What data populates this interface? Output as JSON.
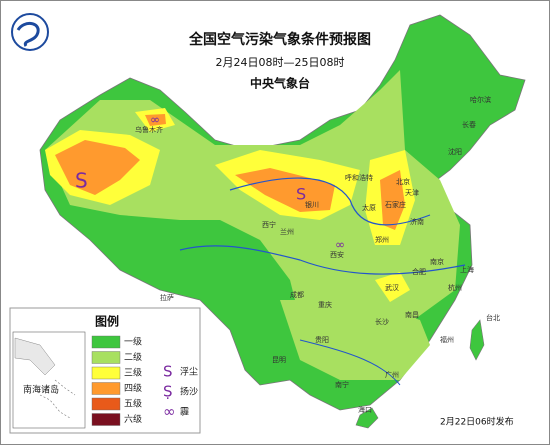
{
  "header": {
    "title": "全国空气污染气象条件预报图",
    "period": "2月24日08时—25日08时",
    "issuer": "中央气象台"
  },
  "legend": {
    "title": "图例",
    "levels": [
      {
        "name": "一级",
        "color": "#3ec63e"
      },
      {
        "name": "二级",
        "color": "#a8e060"
      },
      {
        "name": "三级",
        "color": "#ffff3a"
      },
      {
        "name": "四级",
        "color": "#ff9a2e"
      },
      {
        "name": "五级",
        "color": "#e85a1a"
      },
      {
        "name": "六级",
        "color": "#7a1020"
      }
    ],
    "symbols": [
      {
        "name": "浮尘"
      },
      {
        "name": "扬沙"
      },
      {
        "name": "霾"
      }
    ]
  },
  "inset": "南海诸岛",
  "cities": [
    "乌鲁木齐",
    "银川",
    "太原",
    "石家庄",
    "北京",
    "天津",
    "济南",
    "郑州",
    "西安",
    "兰州",
    "西宁",
    "拉萨",
    "成都",
    "重庆",
    "贵阳",
    "昆明",
    "南宁",
    "广州",
    "长沙",
    "武汉",
    "南昌",
    "福州",
    "杭州",
    "上海",
    "南京",
    "合肥",
    "哈尔滨",
    "长春",
    "沈阳",
    "呼和浩特",
    "台北",
    "海口"
  ],
  "footer": "2月22日06时发布"
}
